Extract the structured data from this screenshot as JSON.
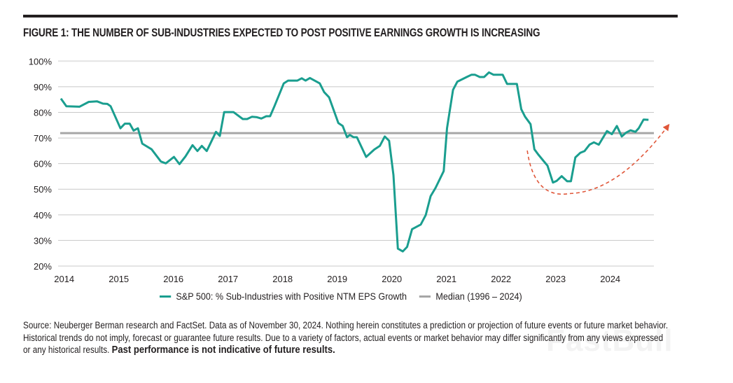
{
  "figure": {
    "title": "FIGURE 1: THE NUMBER OF SUB-INDUSTRIES EXPECTED TO POST POSITIVE EARNINGS GROWTH IS INCREASING",
    "footnote": "Source: Neuberger Berman research and FactSet. Data as of November 30, 2024. Nothing herein constitutes a prediction or projection of future events or future market behavior. Historical trends do not imply, forecast or guarantee future results. Due to a variety of factors, actual events or market behavior may differ significantly from any views expressed or any historical results.",
    "footnote_bold": "Past performance is not indicative of future results.",
    "watermark": "FastBull"
  },
  "chart_data": {
    "type": "line",
    "title": "FIGURE 1: THE NUMBER OF SUB-INDUSTRIES EXPECTED TO POST POSITIVE EARNINGS GROWTH IS INCREASING",
    "xlabel": "",
    "ylabel": "",
    "xlim": [
      2013.9,
      2024.8
    ],
    "ylim": [
      20,
      100
    ],
    "x_ticks": [
      "2014",
      "2015",
      "2016",
      "2017",
      "2018",
      "2019",
      "2020",
      "2021",
      "2022",
      "2023",
      "2024"
    ],
    "y_ticks": [
      "20%",
      "30%",
      "40%",
      "50%",
      "60%",
      "70%",
      "80%",
      "90%",
      "100%"
    ],
    "grid": "horizontal",
    "legend_position": "bottom",
    "colors": {
      "series": "#1a9e8f",
      "median": "#a6a6a6",
      "annotation": "#e0573a"
    },
    "series": [
      {
        "name": "S&P 500: % Sub-Industries with Positive NTM EPS Growth",
        "x": [
          2013.94,
          2014.04,
          2014.28,
          2014.45,
          2014.6,
          2014.71,
          2014.79,
          2014.85,
          2015.03,
          2015.11,
          2015.2,
          2015.27,
          2015.35,
          2015.43,
          2015.6,
          2015.77,
          2015.86,
          2016.01,
          2016.11,
          2016.22,
          2016.35,
          2016.44,
          2016.52,
          2016.61,
          2016.78,
          2016.85,
          2016.93,
          2017.1,
          2017.27,
          2017.35,
          2017.44,
          2017.53,
          2017.61,
          2017.7,
          2017.77,
          2017.85,
          2018.02,
          2018.1,
          2018.27,
          2018.35,
          2018.42,
          2018.5,
          2018.68,
          2018.76,
          2018.85,
          2019.02,
          2019.1,
          2019.18,
          2019.23,
          2019.3,
          2019.36,
          2019.53,
          2019.68,
          2019.78,
          2019.87,
          2019.95,
          2020.03,
          2020.11,
          2020.2,
          2020.28,
          2020.37,
          2020.53,
          2020.62,
          2020.71,
          2020.8,
          2020.95,
          2021.01,
          2021.12,
          2021.2,
          2021.37,
          2021.46,
          2021.52,
          2021.61,
          2021.69,
          2021.78,
          2021.86,
          2022.03,
          2022.11,
          2022.29,
          2022.37,
          2022.44,
          2022.54,
          2022.61,
          2022.68,
          2022.78,
          2022.85,
          2022.95,
          2023.02,
          2023.11,
          2023.21,
          2023.28,
          2023.36,
          2023.45,
          2023.53,
          2023.62,
          2023.7,
          2023.79,
          2023.94,
          2024.03,
          2024.12,
          2024.21,
          2024.29,
          2024.37,
          2024.46,
          2024.52,
          2024.61,
          2024.7
        ],
        "values": [
          85.4,
          82.4,
          82.2,
          84.1,
          84.3,
          83.4,
          83.3,
          82.4,
          73.8,
          75.6,
          75.6,
          72.9,
          73.8,
          67.8,
          65.6,
          60.8,
          60.1,
          62.6,
          59.8,
          62.8,
          67.2,
          64.9,
          66.9,
          64.9,
          72.4,
          70.8,
          80.1,
          80.1,
          77.4,
          77.4,
          78.3,
          78.1,
          77.6,
          78.5,
          78.5,
          82.4,
          91.3,
          92.4,
          92.4,
          93.3,
          92.4,
          93.4,
          91.3,
          87.9,
          85.9,
          75.8,
          74.7,
          70.3,
          71.2,
          70.3,
          70.3,
          62.6,
          65.5,
          66.9,
          70.6,
          68.9,
          55.5,
          26.8,
          25.7,
          27.5,
          34.4,
          36.2,
          39.9,
          47.3,
          50.5,
          57.1,
          73.8,
          88.8,
          92.0,
          93.8,
          94.7,
          94.7,
          93.8,
          93.8,
          95.6,
          94.7,
          94.7,
          91.1,
          91.1,
          81.2,
          78.3,
          75.4,
          65.6,
          63.6,
          61.0,
          59.2,
          52.6,
          53.3,
          55.1,
          53.1,
          53.1,
          62.4,
          64.2,
          64.9,
          67.4,
          68.3,
          67.4,
          72.7,
          71.5,
          74.7,
          70.6,
          72.1,
          73.0,
          72.4,
          73.8,
          77.2,
          77.1
        ]
      },
      {
        "name": "Median (1996 – 2024)",
        "values": [
          71.9
        ]
      }
    ],
    "annotations": [
      {
        "type": "dashed-arrow",
        "points": [
          [
            2022.48,
            65.1
          ],
          [
            2023.25,
            48.3
          ],
          [
            2025.07,
            75.1
          ]
        ]
      }
    ]
  }
}
